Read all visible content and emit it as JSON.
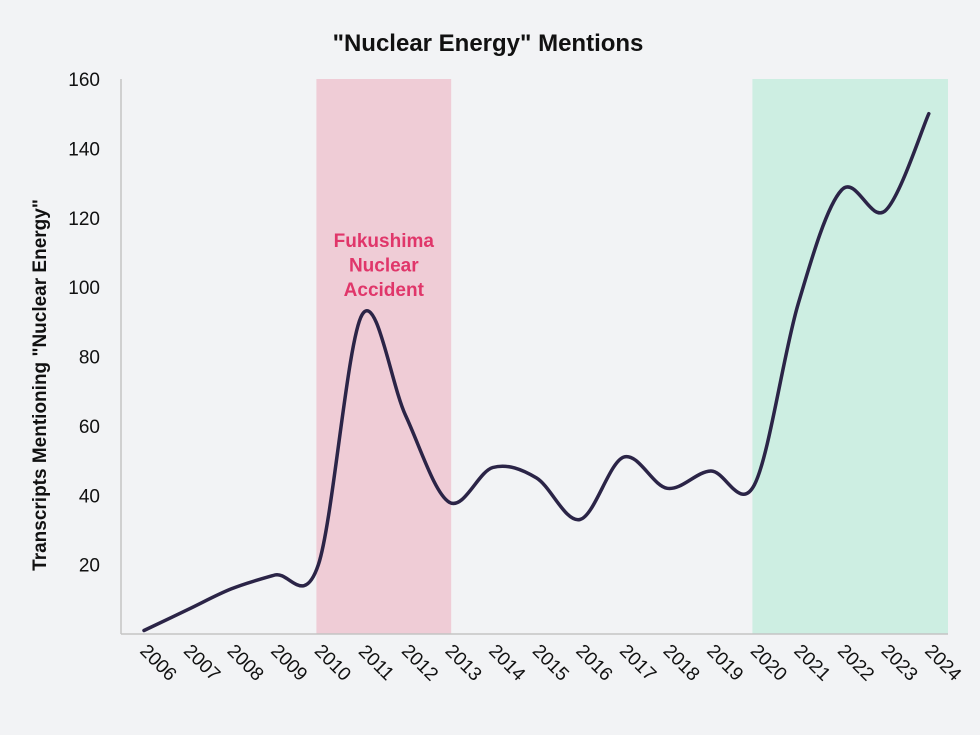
{
  "chart_data": {
    "type": "line",
    "title": "\"Nuclear Energy\" Mentions",
    "xlabel": "",
    "ylabel": "Transcripts Mentioning \"Nuclear Energy\"",
    "x": [
      "2006",
      "2007",
      "2008",
      "2009",
      "2010",
      "2011",
      "2012",
      "2013",
      "2014",
      "2015",
      "2016",
      "2017",
      "2018",
      "2019",
      "2020",
      "2021",
      "2022",
      "2023",
      "2024"
    ],
    "series": [
      {
        "values": [
          1,
          7,
          13,
          17,
          20,
          92,
          63,
          38,
          48,
          45,
          33,
          51,
          42,
          47,
          43,
          95,
          128,
          122,
          150
        ]
      }
    ],
    "ylim": [
      0,
      160
    ],
    "yticks": [
      20,
      40,
      60,
      80,
      100,
      120,
      140,
      160
    ],
    "grid": false,
    "legend": "none",
    "line_color": "#2b2447",
    "highlight_bands": [
      {
        "from": "2010",
        "to": "2013",
        "color": "#efccd6",
        "label": "Fukushima Nuclear Accident",
        "label_color": "#e0366a"
      },
      {
        "from": "2020",
        "to": "2024",
        "color": "#cdeee2",
        "label": ""
      }
    ],
    "annotations": [
      {
        "lines": [
          "Fukushima",
          "Nuclear",
          "Accident"
        ]
      }
    ]
  }
}
